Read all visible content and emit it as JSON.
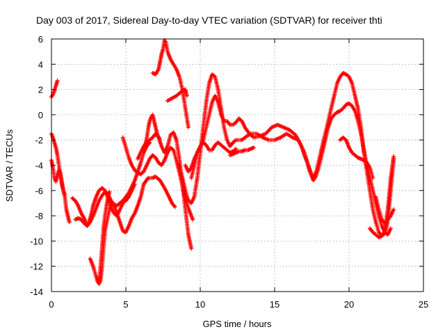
{
  "chart_data": {
    "type": "scatter",
    "title": "Day 003 of 2017, Sidereal Day-to-day VTEC variation (SDTVAR) for receiver thti",
    "xlabel": "GPS time / hours",
    "ylabel": "SDTVAR / TECUs",
    "xlim": [
      0,
      25
    ],
    "ylim": [
      -14,
      6
    ],
    "x_ticks": [
      "0",
      "5",
      "10",
      "15",
      "20",
      "25"
    ],
    "y_ticks": [
      "-14",
      "-12",
      "-10",
      "-8",
      "-6",
      "-4",
      "-2",
      "0",
      "2",
      "4",
      "6"
    ],
    "grid": true,
    "marker": "+",
    "color": "#ff0000",
    "series": [
      {
        "x": [
          0.0,
          0.1,
          0.2,
          0.3,
          0.4
        ],
        "y": [
          1.4,
          1.6,
          1.9,
          2.3,
          2.7
        ]
      },
      {
        "x": [
          0.0,
          0.1,
          0.2,
          0.3,
          0.4,
          0.5,
          0.6,
          0.7,
          0.8,
          0.9,
          1.0,
          1.1,
          1.2
        ],
        "y": [
          -1.5,
          -1.8,
          -2.2,
          -2.6,
          -3.2,
          -4.0,
          -4.8,
          -5.5,
          -6.0,
          -6.5,
          -7.5,
          -8.0,
          -8.5
        ]
      },
      {
        "x": [
          0.0,
          0.1,
          0.2,
          0.3,
          0.4,
          0.5,
          0.6,
          0.7,
          0.8,
          0.9
        ],
        "y": [
          -3.6,
          -4.2,
          -5.0,
          -5.3,
          -4.8,
          -4.4,
          -4.6,
          -5.3,
          -6.0,
          -6.3
        ]
      },
      {
        "x": [
          1.4,
          1.6,
          1.8,
          2.0,
          2.2,
          2.3,
          2.4,
          2.5,
          2.6,
          2.7,
          2.8,
          3.0,
          3.2,
          3.4,
          3.6,
          3.8,
          4.0,
          4.2,
          4.4,
          4.6,
          4.8,
          5.0,
          5.2,
          5.4,
          5.6
        ],
        "y": [
          -6.6,
          -6.8,
          -7.2,
          -7.8,
          -8.2,
          -8.5,
          -8.8,
          -8.6,
          -8.2,
          -7.8,
          -7.2,
          -6.5,
          -6.0,
          -5.8,
          -6.0,
          -6.6,
          -7.3,
          -7.8,
          -8.0,
          -7.5,
          -7.0,
          -6.8,
          -6.5,
          -6.0,
          -5.5
        ]
      },
      {
        "x": [
          1.6,
          1.8,
          2.0,
          2.2,
          2.4,
          2.6,
          2.8,
          3.0,
          3.2,
          3.4,
          3.6,
          3.8,
          4.0,
          4.2,
          4.4,
          4.6,
          4.8,
          5.0,
          5.2,
          5.4,
          5.6,
          5.8,
          6.0,
          6.2,
          6.4,
          6.6
        ],
        "y": [
          -8.3,
          -8.2,
          -8.3,
          -8.6,
          -8.8,
          -8.5,
          -8.0,
          -7.4,
          -6.8,
          -6.4,
          -6.1,
          -6.3,
          -6.8,
          -7.1,
          -7.2,
          -7.0,
          -6.8,
          -6.5,
          -6.2,
          -5.7,
          -5.2,
          -4.5,
          -3.8,
          -3.0,
          -2.5,
          -2.2
        ]
      },
      {
        "x": [
          2.6,
          2.8,
          3.0,
          3.1,
          3.2,
          3.3,
          3.4,
          3.5,
          3.6,
          3.8,
          4.0,
          4.2,
          4.4,
          4.6,
          4.8,
          5.0,
          5.2,
          5.4,
          5.6,
          5.8,
          6.0,
          6.2,
          6.5,
          6.8,
          7.0,
          7.3,
          7.6,
          7.9,
          8.1,
          8.3
        ],
        "y": [
          -11.4,
          -12.0,
          -12.8,
          -13.2,
          -13.4,
          -13.1,
          -12.0,
          -10.5,
          -9.2,
          -8.0,
          -7.0,
          -7.2,
          -7.8,
          -8.5,
          -9.2,
          -9.3,
          -8.8,
          -8.2,
          -7.8,
          -7.2,
          -6.5,
          -5.5,
          -5.0,
          -5.0,
          -4.9,
          -5.2,
          -5.8,
          -6.5,
          -7.0,
          -7.3
        ]
      },
      {
        "x": [
          3.2,
          3.3,
          3.4,
          3.5,
          3.6,
          3.7,
          3.8,
          3.9
        ],
        "y": [
          -13.3,
          -12.0,
          -10.5,
          -9.0,
          -8.0,
          -7.2,
          -6.6,
          -6.1
        ]
      },
      {
        "x": [
          4.8,
          5.0,
          5.2,
          5.4,
          5.6,
          5.8,
          6.0,
          6.2,
          6.4,
          6.6,
          6.8,
          7.0,
          7.2,
          7.4,
          7.6,
          7.8,
          8.0,
          8.2,
          8.4,
          8.6,
          8.8,
          9.0,
          9.2,
          9.4,
          9.5
        ],
        "y": [
          -1.8,
          -2.6,
          -3.4,
          -4.0,
          -4.4,
          -4.6,
          -4.7,
          -4.5,
          -4.0,
          -3.5,
          -3.2,
          -3.4,
          -3.8,
          -4.0,
          -3.6,
          -3.0,
          -2.6,
          -2.8,
          -3.6,
          -4.6,
          -5.6,
          -6.6,
          -7.4,
          -8.0,
          -8.3
        ]
      },
      {
        "x": [
          5.8,
          6.0,
          6.2,
          6.4,
          6.6,
          6.8,
          7.0,
          7.2,
          7.4,
          7.6,
          7.8,
          8.0,
          8.2,
          8.4,
          8.6,
          8.8,
          9.0,
          9.2,
          9.4
        ],
        "y": [
          -3.5,
          -3.0,
          -2.5,
          -2.2,
          -2.0,
          -1.8,
          -1.5,
          -1.8,
          -2.5,
          -3.0,
          -2.5,
          -1.6,
          -1.4,
          -2.0,
          -3.5,
          -5.5,
          -7.5,
          -9.5,
          -10.6
        ]
      },
      {
        "x": [
          6.3,
          6.4,
          6.5,
          6.6,
          6.7,
          6.8,
          6.9,
          7.0,
          7.1,
          7.3
        ],
        "y": [
          -2.4,
          -1.9,
          -1.1,
          -0.5,
          -0.2,
          0.0,
          -0.5,
          -1.0,
          -1.5,
          -2.0
        ]
      },
      {
        "x": [
          6.8,
          7.0,
          7.2,
          7.3,
          7.4,
          7.5,
          7.6,
          7.7,
          7.8,
          8.0,
          8.2,
          8.4,
          8.6,
          8.8,
          9.0,
          9.2
        ],
        "y": [
          3.3,
          3.2,
          3.6,
          4.2,
          4.8,
          5.2,
          5.9,
          5.7,
          5.0,
          4.4,
          4.0,
          3.6,
          3.0,
          2.0,
          0.5,
          -1.0
        ]
      },
      {
        "x": [
          7.8,
          8.1,
          8.4,
          8.6,
          8.8,
          9.0,
          9.1
        ],
        "y": [
          1.1,
          1.3,
          1.5,
          1.7,
          1.9,
          2.0,
          1.5
        ]
      },
      {
        "x": [
          8.6,
          8.8,
          9.0,
          9.2,
          9.4,
          9.6,
          9.8,
          10.0,
          10.2,
          10.4,
          10.6,
          10.8,
          11.0,
          11.2,
          11.4,
          11.6,
          11.8,
          12.0,
          12.2,
          12.4,
          12.6,
          12.8,
          13.0,
          13.4,
          13.8,
          14.2,
          14.6,
          15.0,
          15.4,
          15.8,
          16.2,
          16.6,
          17.0,
          17.2,
          17.4,
          17.6,
          17.8,
          18.0,
          18.2,
          18.4,
          18.6,
          18.8,
          19.0,
          19.2,
          19.4,
          19.6,
          19.8,
          20.0,
          20.2,
          20.4,
          20.6,
          20.8,
          21.0,
          21.2,
          21.4,
          21.6,
          21.8,
          22.0,
          22.2,
          22.4,
          22.6,
          22.8,
          23.0
        ],
        "y": [
          -4.0,
          -5.0,
          -6.0,
          -6.8,
          -7.0,
          -6.5,
          -5.0,
          -3.0,
          -1.0,
          1.0,
          2.5,
          3.2,
          3.0,
          2.0,
          0.5,
          -1.0,
          -2.0,
          -2.5,
          -2.2,
          -2.0,
          -2.0,
          -2.0,
          -1.8,
          -1.5,
          -1.5,
          -1.8,
          -2.0,
          -2.0,
          -1.8,
          -1.5,
          -1.8,
          -2.0,
          -3.0,
          -3.8,
          -4.5,
          -5.0,
          -4.5,
          -3.5,
          -2.5,
          -1.5,
          -0.5,
          0.5,
          1.5,
          2.5,
          3.0,
          3.3,
          3.2,
          3.0,
          2.5,
          1.5,
          0.5,
          -1.0,
          -3.0,
          -4.5,
          -6.0,
          -7.5,
          -8.5,
          -9.3,
          -9.6,
          -9.4,
          -8.5,
          -6.0,
          -3.5
        ]
      },
      {
        "x": [
          9.0,
          9.2,
          9.4,
          9.6,
          9.8,
          10.0,
          10.2,
          10.4,
          10.6,
          10.8,
          11.0,
          11.2,
          11.4,
          11.6,
          11.8,
          12.0,
          12.2,
          12.4,
          12.6,
          12.8,
          13.0,
          13.3,
          13.6,
          14.0,
          14.4,
          14.8,
          15.2,
          15.6,
          16.0,
          16.4,
          16.8,
          17.0,
          17.2,
          17.4,
          17.6,
          17.8,
          18.0,
          18.2,
          18.4,
          18.6,
          18.8,
          19.0,
          19.2,
          19.4,
          19.6,
          19.8,
          20.0,
          20.2,
          20.4,
          20.6,
          20.8,
          21.0,
          21.2,
          21.4,
          21.6,
          21.8,
          22.0,
          22.2,
          22.4,
          22.6,
          22.8
        ],
        "y": [
          -4.0,
          -4.5,
          -4.2,
          -3.5,
          -3.0,
          -2.5,
          -2.0,
          -1.0,
          0.0,
          1.0,
          1.5,
          1.0,
          0.0,
          -0.5,
          -0.5,
          -0.8,
          -0.8,
          -0.6,
          -0.3,
          -0.5,
          -1.0,
          -1.5,
          -1.8,
          -1.7,
          -1.5,
          -1.0,
          -0.8,
          -1.0,
          -1.2,
          -1.6,
          -2.5,
          -3.2,
          -3.8,
          -4.6,
          -5.2,
          -4.8,
          -4.0,
          -3.0,
          -2.0,
          -1.0,
          -0.3,
          0.0,
          0.2,
          0.3,
          0.5,
          0.8,
          0.9,
          0.7,
          0.3,
          -0.5,
          -1.5,
          -2.8,
          -4.0,
          -5.0,
          -6.0,
          -7.0,
          -8.0,
          -8.8,
          -9.3,
          -9.5,
          -9.0
        ]
      },
      {
        "x": [
          9.4,
          9.6,
          9.8,
          10.0,
          10.2,
          10.4,
          10.6,
          10.8,
          11.0,
          11.2,
          11.4,
          11.6,
          11.8,
          12.0,
          12.2,
          12.4
        ],
        "y": [
          -5.0,
          -4.0,
          -3.0,
          -2.5,
          -2.2,
          -2.4,
          -2.8,
          -2.8,
          -2.4,
          -2.2,
          -2.4,
          -2.6,
          -2.8,
          -3.0,
          -2.9,
          -2.7
        ]
      },
      {
        "x": [
          12.0,
          12.2,
          12.4,
          12.6,
          12.8,
          13.0,
          13.2,
          13.4,
          13.6
        ],
        "y": [
          -3.2,
          -3.1,
          -3.0,
          -2.9,
          -2.9,
          -2.8,
          -2.8,
          -2.7,
          -2.6
        ]
      },
      {
        "x": [
          19.4,
          19.6,
          19.8,
          20.0,
          20.2,
          20.4,
          20.6,
          20.8,
          21.0,
          21.2,
          21.4,
          21.6
        ],
        "y": [
          -2.0,
          -1.8,
          -2.0,
          -2.6,
          -3.0,
          -3.2,
          -3.4,
          -3.5,
          -3.6,
          -3.8,
          -4.2,
          -5.0
        ]
      },
      {
        "x": [
          21.8,
          22.0,
          22.2,
          22.4,
          22.6,
          22.8,
          23.0
        ],
        "y": [
          -6.5,
          -7.5,
          -8.3,
          -8.6,
          -8.3,
          -8.0,
          -7.5
        ]
      },
      {
        "x": [
          21.4,
          21.6,
          21.8,
          22.0,
          22.2,
          22.4,
          22.6,
          22.8,
          23.0
        ],
        "y": [
          -9.0,
          -9.3,
          -9.5,
          -9.7,
          -9.6,
          -9.2,
          -7.5,
          -5.0,
          -3.3
        ]
      }
    ]
  }
}
